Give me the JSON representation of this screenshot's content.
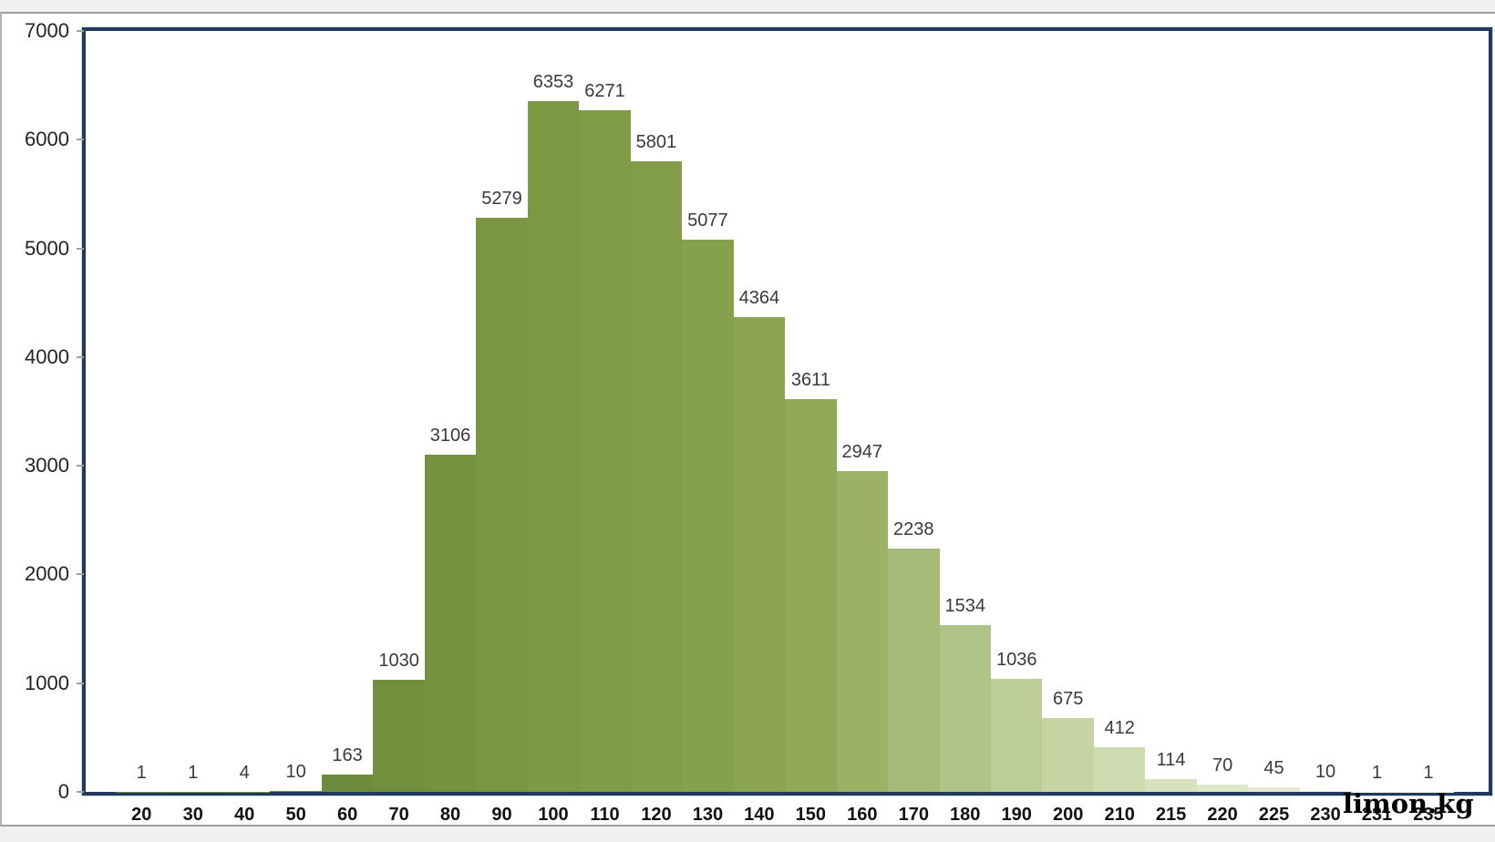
{
  "watermark": "limon.kg",
  "chart_data": {
    "type": "bar",
    "title": "",
    "xlabel": "",
    "ylabel": "",
    "categories": [
      "20",
      "30",
      "40",
      "50",
      "60",
      "70",
      "80",
      "90",
      "100",
      "110",
      "120",
      "130",
      "140",
      "150",
      "160",
      "170",
      "180",
      "190",
      "200",
      "210",
      "215",
      "220",
      "225",
      "230",
      "231",
      "235"
    ],
    "values": [
      1,
      1,
      4,
      10,
      163,
      1030,
      3106,
      5279,
      6353,
      6271,
      5801,
      5077,
      4364,
      3611,
      2947,
      2238,
      1534,
      1036,
      675,
      412,
      114,
      70,
      45,
      10,
      1,
      1
    ],
    "data_labels": [
      "1",
      "1",
      "4",
      "10",
      "163",
      "1030",
      "3106",
      "5279",
      "6353",
      "6271",
      "5801",
      "5077",
      "4364",
      "3611",
      "2947",
      "2238",
      "1534",
      "1036",
      "675",
      "412",
      "114",
      "70",
      "45",
      "10",
      "1",
      "1"
    ],
    "bar_colors": [
      "#6a8938",
      "#6b8a39",
      "#6c8b3a",
      "#6d8c3b",
      "#6e8d3c",
      "#71903e",
      "#75933f",
      "#799641",
      "#7c9943",
      "#7f9b46",
      "#829e49",
      "#86a14d",
      "#8aa452",
      "#90a958",
      "#9cb166",
      "#a6ba78",
      "#b1c487",
      "#bdcd98",
      "#c6d4a4",
      "#cfdbb1",
      "#d7e1bd",
      "#dde6c7",
      "#e3ead0",
      "#eaf0db",
      "#eef3e2",
      "#f2f6e9"
    ],
    "ylim": [
      0,
      7000
    ],
    "yticks": [
      "0",
      "1000",
      "2000",
      "3000",
      "4000",
      "5000",
      "6000",
      "7000"
    ],
    "grid": false,
    "legend": false,
    "layout_hints": {
      "bars_touching": true,
      "label_position": "outside-end"
    },
    "colors": {
      "plot_border": "#20395c",
      "bar_label": "#3a3a3a",
      "x_axis_label": "#111111",
      "y_axis_label": "#232323",
      "tick_mark": "#a0a0a0",
      "canvas_bg": "#ffffff",
      "page_bg": "#f1f0ee",
      "frame_line": "#9e9e9e"
    }
  }
}
